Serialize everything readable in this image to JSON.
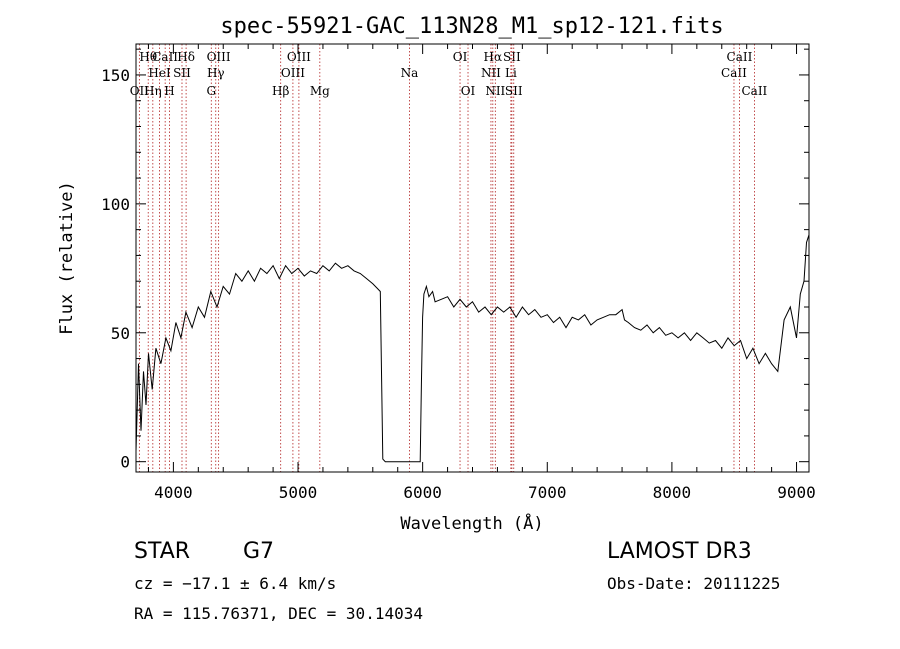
{
  "chart_data": {
    "type": "line",
    "title": "spec-55921-GAC_113N28_M1_sp12-121.fits",
    "xlabel": "Wavelength (Å)",
    "ylabel": "Flux (relative)",
    "xlim": [
      3700,
      9100
    ],
    "ylim": [
      -4,
      162
    ],
    "xticks": [
      4000,
      5000,
      6000,
      7000,
      8000,
      9000
    ],
    "yticks": [
      0,
      50,
      100,
      150
    ],
    "series": [
      {
        "name": "flux",
        "x": [
          3700,
          3720,
          3740,
          3760,
          3780,
          3800,
          3830,
          3860,
          3900,
          3940,
          3980,
          4020,
          4060,
          4100,
          4150,
          4200,
          4250,
          4300,
          4350,
          4400,
          4450,
          4500,
          4550,
          4600,
          4650,
          4700,
          4750,
          4800,
          4850,
          4900,
          4950,
          5000,
          5050,
          5100,
          5150,
          5200,
          5250,
          5300,
          5350,
          5400,
          5450,
          5500,
          5550,
          5600,
          5640,
          5660,
          5680,
          5700,
          5800,
          5900,
          5980,
          5990,
          6000,
          6010,
          6030,
          6050,
          6080,
          6100,
          6150,
          6200,
          6250,
          6300,
          6350,
          6400,
          6450,
          6500,
          6550,
          6600,
          6650,
          6700,
          6750,
          6800,
          6850,
          6900,
          6950,
          7000,
          7050,
          7100,
          7150,
          7200,
          7250,
          7300,
          7350,
          7400,
          7450,
          7500,
          7550,
          7600,
          7620,
          7650,
          7700,
          7750,
          7800,
          7850,
          7900,
          7950,
          8000,
          8050,
          8100,
          8150,
          8200,
          8250,
          8300,
          8350,
          8400,
          8450,
          8500,
          8550,
          8600,
          8650,
          8700,
          8750,
          8800,
          8850,
          8900,
          8950,
          9000,
          9030,
          9060,
          9080,
          9100
        ],
        "y": [
          4,
          38,
          12,
          35,
          22,
          42,
          28,
          44,
          38,
          48,
          43,
          54,
          48,
          58,
          52,
          60,
          56,
          66,
          60,
          68,
          65,
          73,
          70,
          74,
          70,
          75,
          73,
          76,
          71,
          76,
          73,
          75,
          72,
          74,
          73,
          76,
          74,
          77,
          75,
          76,
          74,
          73,
          71,
          69,
          67,
          66,
          1,
          0,
          0,
          0,
          0,
          30,
          56,
          65,
          68,
          64,
          66,
          62,
          63,
          64,
          60,
          63,
          60,
          62,
          58,
          60,
          57,
          60,
          58,
          60,
          56,
          60,
          57,
          59,
          56,
          57,
          54,
          56,
          52,
          56,
          55,
          57,
          53,
          55,
          56,
          57,
          57,
          59,
          55,
          54,
          52,
          51,
          53,
          50,
          52,
          49,
          50,
          48,
          50,
          47,
          50,
          48,
          46,
          47,
          44,
          48,
          45,
          47,
          40,
          44,
          38,
          42,
          38,
          35,
          55,
          60,
          48,
          65,
          70,
          85,
          88
        ]
      }
    ],
    "lines": [
      {
        "label": "Hθ",
        "wl": 3798,
        "row": 0
      },
      {
        "label": "OII",
        "wl": 3727,
        "row": 2
      },
      {
        "label": "Hη",
        "wl": 3835,
        "row": 2
      },
      {
        "label": "HeI",
        "wl": 3889,
        "row": 1
      },
      {
        "label": "CaII",
        "wl": 3934,
        "row": 0
      },
      {
        "label": "H",
        "wl": 3969,
        "row": 2
      },
      {
        "label": "SII",
        "wl": 4069,
        "row": 1
      },
      {
        "label": "Hδ",
        "wl": 4102,
        "row": 0
      },
      {
        "label": "G",
        "wl": 4304,
        "row": 2
      },
      {
        "label": "Hγ",
        "wl": 4340,
        "row": 1
      },
      {
        "label": "OIII",
        "wl": 4363,
        "row": 0
      },
      {
        "label": "Hβ",
        "wl": 4861,
        "row": 2
      },
      {
        "label": "OIII",
        "wl": 4959,
        "row": 1
      },
      {
        "label": "OIII",
        "wl": 5007,
        "row": 0
      },
      {
        "label": "Mg",
        "wl": 5175,
        "row": 2
      },
      {
        "label": "Na",
        "wl": 5894,
        "row": 1
      },
      {
        "label": "OI",
        "wl": 6300,
        "row": 0
      },
      {
        "label": "OI",
        "wl": 6364,
        "row": 2
      },
      {
        "label": "NII",
        "wl": 6548,
        "row": 1
      },
      {
        "label": "Hα",
        "wl": 6563,
        "row": 0
      },
      {
        "label": "NII",
        "wl": 6583,
        "row": 2
      },
      {
        "label": "Li",
        "wl": 6708,
        "row": 1
      },
      {
        "label": "SII",
        "wl": 6716,
        "row": 0
      },
      {
        "label": "SII",
        "wl": 6731,
        "row": 2
      },
      {
        "label": "CaII",
        "wl": 8498,
        "row": 1
      },
      {
        "label": "CaII",
        "wl": 8542,
        "row": 0
      },
      {
        "label": "CaII",
        "wl": 8662,
        "row": 2
      }
    ]
  },
  "info": {
    "class": "STAR",
    "subclass": "G7",
    "survey": "LAMOST DR3",
    "cz": "cz = −17.1 ± 6.4 km/s",
    "obs_date": "Obs-Date: 20111225",
    "coords": "RA = 115.76371, DEC =  30.14034"
  },
  "colors": {
    "axis": "#000000",
    "line": "#000000",
    "marker": "#b22222"
  }
}
